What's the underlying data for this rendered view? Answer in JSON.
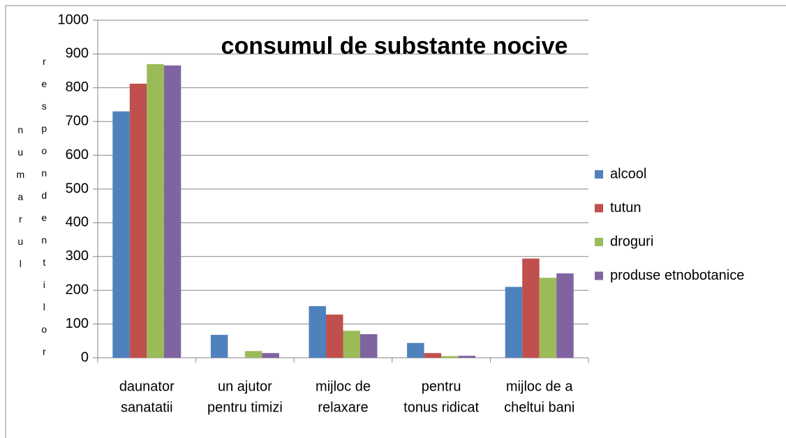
{
  "chart_data": {
    "type": "bar",
    "title": "consumul de substante nocive",
    "ylabel": [
      "numarul",
      "respondentilor"
    ],
    "categories": [
      [
        "daunator",
        "sanatatii"
      ],
      [
        "un ajutor",
        "pentru timizi"
      ],
      [
        "mijloc de",
        "relaxare"
      ],
      [
        "pentru",
        "tonus ridicat"
      ],
      [
        "mijloc de a",
        "cheltui bani"
      ]
    ],
    "series": [
      {
        "name": "alcool",
        "color": "#4f81bd",
        "values": [
          730,
          68,
          153,
          44,
          210
        ]
      },
      {
        "name": "tutun",
        "color": "#c0504d",
        "values": [
          812,
          0,
          128,
          14,
          294
        ]
      },
      {
        "name": "droguri",
        "color": "#9bbb59",
        "values": [
          870,
          20,
          80,
          5,
          237
        ]
      },
      {
        "name": "produse etnobotanice",
        "color": "#8064a2",
        "values": [
          866,
          14,
          70,
          6,
          250
        ]
      }
    ],
    "ylim": [
      0,
      1000
    ],
    "yticks": [
      0,
      100,
      200,
      300,
      400,
      500,
      600,
      700,
      800,
      900,
      1000
    ],
    "grid": true,
    "legend": "right"
  }
}
